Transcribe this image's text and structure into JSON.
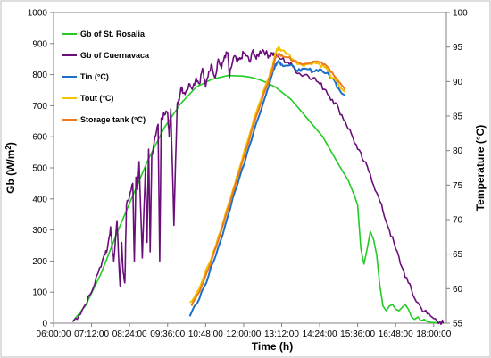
{
  "chart_data": {
    "type": "line",
    "title": "",
    "xlabel": "Time (h)",
    "ylabel_left": "Gb (W/m²)",
    "ylabel_left_base": "Gb (W/m",
    "ylabel_left_sup": "2",
    "ylabel_left_close": ")",
    "ylabel_right": "Temperature (°C)",
    "x_tick_labels": [
      "06:00:00",
      "07:12:00",
      "08:24:00",
      "09:36:00",
      "10:48:00",
      "12:00:00",
      "13:12:00",
      "14:24:00",
      "15:36:00",
      "16:48:00",
      "18:00:00"
    ],
    "x_tick_hours": [
      6,
      7.2,
      8.4,
      9.6,
      10.8,
      12,
      13.2,
      14.4,
      15.6,
      16.8,
      18
    ],
    "xlim_hours": [
      6,
      18.4
    ],
    "ylim_left": [
      0,
      1000
    ],
    "ylim_right": [
      55,
      100
    ],
    "y_left_ticks": [
      "0",
      "100",
      "200",
      "300",
      "400",
      "500",
      "600",
      "700",
      "800",
      "900",
      "1000"
    ],
    "y_right_ticks": [
      "55",
      "60",
      "65",
      "70",
      "75",
      "80",
      "85",
      "90",
      "95",
      "100"
    ],
    "legend_placement": "top-left",
    "grid": false,
    "series": [
      {
        "name": "Gb of  St. Rosalia",
        "axis": "left",
        "color": "#22cc22",
        "x": [
          6.6,
          7.0,
          7.5,
          8.0,
          8.5,
          9.0,
          9.5,
          10.0,
          10.5,
          11.0,
          11.5,
          12.0,
          12.3,
          12.6,
          13.0,
          13.5,
          14.0,
          14.5,
          15.0,
          15.3,
          15.5,
          15.6,
          15.7,
          15.8,
          15.9,
          16.0,
          16.1,
          16.2,
          16.3,
          16.4,
          16.5,
          16.6,
          16.7,
          16.8,
          16.9,
          17.0,
          17.1,
          17.2,
          17.3,
          17.4,
          17.5,
          17.6,
          17.7,
          17.8,
          17.9,
          18.0,
          18.2,
          18.3
        ],
        "y": [
          5,
          55,
          160,
          290,
          410,
          530,
          630,
          705,
          760,
          785,
          797,
          795,
          790,
          780,
          760,
          720,
          660,
          600,
          510,
          460,
          410,
          380,
          240,
          190,
          240,
          295,
          270,
          220,
          120,
          55,
          40,
          55,
          60,
          45,
          40,
          50,
          60,
          45,
          20,
          12,
          20,
          8,
          12,
          5,
          3,
          2,
          2,
          0
        ]
      },
      {
        "name": "Gb of Cuernavaca",
        "axis": "left",
        "color": "#6a0f7a",
        "x": [
          6.6,
          6.8,
          7.0,
          7.2,
          7.4,
          7.6,
          7.7,
          7.8,
          7.85,
          7.9,
          8.0,
          8.1,
          8.15,
          8.2,
          8.25,
          8.3,
          8.4,
          8.5,
          8.55,
          8.6,
          8.65,
          8.7,
          8.8,
          8.9,
          8.95,
          9.0,
          9.05,
          9.1,
          9.2,
          9.3,
          9.35,
          9.4,
          9.5,
          9.6,
          9.65,
          9.7,
          9.8,
          9.9,
          9.95,
          10.0,
          10.05,
          10.1,
          10.2,
          10.3,
          10.4,
          10.5,
          10.6,
          10.7,
          10.8,
          10.9,
          11.0,
          11.1,
          11.2,
          11.3,
          11.4,
          11.5,
          11.55,
          11.6,
          11.7,
          11.8,
          11.9,
          12.0,
          12.1,
          12.2,
          12.3,
          12.4,
          12.5,
          12.6,
          12.7,
          12.8,
          12.9,
          13.0,
          13.2,
          13.4,
          13.6,
          13.8,
          14.0,
          14.2,
          14.4,
          14.6,
          14.8,
          15.0,
          15.2,
          15.4,
          15.6,
          15.8,
          16.0,
          16.2,
          16.4,
          16.6,
          16.8,
          17.0,
          17.2,
          17.4,
          17.6,
          17.8,
          18.0,
          18.2,
          18.3
        ],
        "y": [
          5,
          25,
          60,
          100,
          160,
          220,
          240,
          310,
          240,
          200,
          330,
          120,
          260,
          160,
          130,
          380,
          410,
          450,
          200,
          470,
          430,
          520,
          210,
          500,
          260,
          560,
          230,
          540,
          600,
          640,
          200,
          660,
          670,
          680,
          600,
          690,
          315,
          700,
          720,
          740,
          760,
          740,
          750,
          770,
          760,
          790,
          770,
          820,
          760,
          810,
          830,
          790,
          850,
          820,
          860,
          870,
          790,
          820,
          860,
          840,
          850,
          870,
          860,
          840,
          880,
          850,
          870,
          880,
          870,
          860,
          870,
          860,
          850,
          840,
          820,
          800,
          800,
          790,
          770,
          750,
          720,
          690,
          650,
          610,
          560,
          520,
          480,
          420,
          360,
          300,
          240,
          180,
          130,
          80,
          50,
          30,
          15,
          5,
          0
        ],
        "jitter": 10
      },
      {
        "name": "Tin (°C)",
        "axis": "right",
        "color": "#1a6fc9",
        "x": [
          10.3,
          10.6,
          10.9,
          11.2,
          11.5,
          11.8,
          12.1,
          12.4,
          12.7,
          12.9,
          13.0,
          13.1,
          13.2,
          13.4,
          13.6,
          13.8,
          14.0,
          14.2,
          14.4,
          14.6,
          14.8,
          15.0,
          15.2
        ],
        "y": [
          56,
          58.5,
          62,
          66,
          70.5,
          75,
          79.5,
          84,
          88,
          91,
          92.5,
          93,
          92.5,
          92.3,
          92,
          91.5,
          91.8,
          91.5,
          91.8,
          91.2,
          90.5,
          89,
          88
        ],
        "jitter": 0.3
      },
      {
        "name": "Tout (°C)",
        "axis": "right",
        "color": "#f2c200",
        "x": [
          10.3,
          10.6,
          10.9,
          11.2,
          11.5,
          11.8,
          12.1,
          12.4,
          12.7,
          12.9,
          13.0,
          13.1,
          13.2,
          13.4,
          13.6,
          13.8,
          14.0,
          14.2,
          14.4,
          14.6,
          14.8,
          15.0,
          15.2
        ],
        "y": [
          58,
          60,
          63.5,
          67.5,
          72,
          76.5,
          81,
          85.5,
          89.5,
          92,
          94,
          95,
          94.5,
          94,
          93,
          92.5,
          92.5,
          92.8,
          92.5,
          92,
          90.5,
          89.5,
          88.5
        ],
        "jitter": 0.3
      },
      {
        "name": "Storage tank (°C)",
        "axis": "right",
        "color": "#f07a1a",
        "x": [
          10.35,
          10.6,
          10.9,
          11.2,
          11.5,
          11.8,
          12.1,
          12.4,
          12.7,
          12.9,
          13.0,
          13.1,
          13.2,
          13.4,
          13.6,
          13.8,
          14.0,
          14.2,
          14.4,
          14.6,
          14.8,
          15.0,
          15.2
        ],
        "y": [
          57.5,
          59.5,
          63,
          67,
          71.5,
          76,
          80.5,
          85,
          89,
          91.5,
          93.5,
          94,
          93.8,
          93.5,
          93,
          92.6,
          92.6,
          92.9,
          92.8,
          92.3,
          91.3,
          90,
          88.8
        ],
        "jitter": 0.15
      }
    ]
  }
}
